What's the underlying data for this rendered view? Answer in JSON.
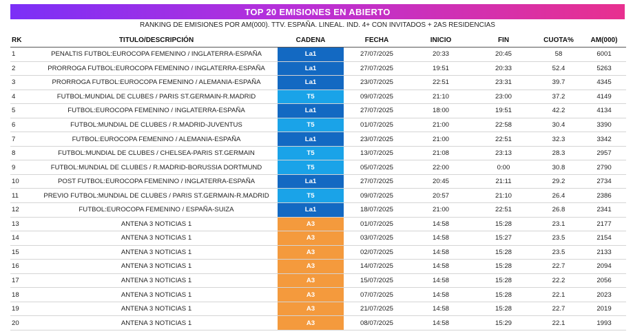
{
  "header": {
    "title": "TOP 20 EMISIONES EN ABIERTO",
    "subtitle": "RANKING DE EMISIONES POR AM(000). TTV. ESPAÑA. LINEAL. IND. 4+ CON INVITADOS + 2AS RESIDENCIAS"
  },
  "columns": {
    "rk": "RK",
    "titulo": "TITULO/DESCRIPCIÓN",
    "cadena": "CADENA",
    "fecha": "FECHA",
    "inicio": "INICIO",
    "fin": "FIN",
    "cuota": "CUOTA%",
    "am": "AM(000)"
  },
  "channel_colors": {
    "La1": "#1369c2",
    "T5": "#1aa3e8",
    "A3": "#f49a3d"
  },
  "rows": [
    {
      "rk": "1",
      "titulo": "PENALTIS FUTBOL:EUROCOPA FEMENINO / INGLATERRA-ESPAÑA",
      "cadena": "La1",
      "fecha": "27/07/2025",
      "inicio": "20:33",
      "fin": "20:45",
      "cuota": "58",
      "am": "6001"
    },
    {
      "rk": "2",
      "titulo": "PRORROGA FUTBOL:EUROCOPA FEMENINO / INGLATERRA-ESPAÑA",
      "cadena": "La1",
      "fecha": "27/07/2025",
      "inicio": "19:51",
      "fin": "20:33",
      "cuota": "52.4",
      "am": "5263"
    },
    {
      "rk": "3",
      "titulo": "PRORROGA FUTBOL:EUROCOPA FEMENINO / ALEMANIA-ESPAÑA",
      "cadena": "La1",
      "fecha": "23/07/2025",
      "inicio": "22:51",
      "fin": "23:31",
      "cuota": "39.7",
      "am": "4345"
    },
    {
      "rk": "4",
      "titulo": "FUTBOL:MUNDIAL DE CLUBES / PARIS ST.GERMAIN-R.MADRID",
      "cadena": "T5",
      "fecha": "09/07/2025",
      "inicio": "21:10",
      "fin": "23:00",
      "cuota": "37.2",
      "am": "4149"
    },
    {
      "rk": "5",
      "titulo": "FUTBOL:EUROCOPA FEMENINO / INGLATERRA-ESPAÑA",
      "cadena": "La1",
      "fecha": "27/07/2025",
      "inicio": "18:00",
      "fin": "19:51",
      "cuota": "42.2",
      "am": "4134"
    },
    {
      "rk": "6",
      "titulo": "FUTBOL:MUNDIAL DE CLUBES / R.MADRID-JUVENTUS",
      "cadena": "T5",
      "fecha": "01/07/2025",
      "inicio": "21:00",
      "fin": "22:58",
      "cuota": "30.4",
      "am": "3390"
    },
    {
      "rk": "7",
      "titulo": "FUTBOL:EUROCOPA FEMENINO / ALEMANIA-ESPAÑA",
      "cadena": "La1",
      "fecha": "23/07/2025",
      "inicio": "21:00",
      "fin": "22:51",
      "cuota": "32.3",
      "am": "3342"
    },
    {
      "rk": "8",
      "titulo": "FUTBOL:MUNDIAL DE CLUBES / CHELSEA-PARIS ST.GERMAIN",
      "cadena": "T5",
      "fecha": "13/07/2025",
      "inicio": "21:08",
      "fin": "23:13",
      "cuota": "28.3",
      "am": "2957"
    },
    {
      "rk": "9",
      "titulo": "FUTBOL:MUNDIAL DE CLUBES / R.MADRID-BORUSSIA DORTMUND",
      "cadena": "T5",
      "fecha": "05/07/2025",
      "inicio": "22:00",
      "fin": "0:00",
      "cuota": "30.8",
      "am": "2790"
    },
    {
      "rk": "10",
      "titulo": "POST FUTBOL:EUROCOPA FEMENINO / INGLATERRA-ESPAÑA",
      "cadena": "La1",
      "fecha": "27/07/2025",
      "inicio": "20:45",
      "fin": "21:11",
      "cuota": "29.2",
      "am": "2734"
    },
    {
      "rk": "11",
      "titulo": "PREVIO FUTBOL:MUNDIAL DE CLUBES / PARIS ST.GERMAIN-R.MADRID",
      "cadena": "T5",
      "fecha": "09/07/2025",
      "inicio": "20:57",
      "fin": "21:10",
      "cuota": "26.4",
      "am": "2386"
    },
    {
      "rk": "12",
      "titulo": "FUTBOL:EUROCOPA FEMENINO / ESPAÑA-SUIZA",
      "cadena": "La1",
      "fecha": "18/07/2025",
      "inicio": "21:00",
      "fin": "22:51",
      "cuota": "26.8",
      "am": "2341"
    },
    {
      "rk": "13",
      "titulo": "ANTENA 3 NOTICIAS 1",
      "cadena": "A3",
      "fecha": "01/07/2025",
      "inicio": "14:58",
      "fin": "15:28",
      "cuota": "23.1",
      "am": "2177"
    },
    {
      "rk": "14",
      "titulo": "ANTENA 3 NOTICIAS 1",
      "cadena": "A3",
      "fecha": "03/07/2025",
      "inicio": "14:58",
      "fin": "15:27",
      "cuota": "23.5",
      "am": "2154"
    },
    {
      "rk": "15",
      "titulo": "ANTENA 3 NOTICIAS 1",
      "cadena": "A3",
      "fecha": "02/07/2025",
      "inicio": "14:58",
      "fin": "15:28",
      "cuota": "23.5",
      "am": "2133"
    },
    {
      "rk": "16",
      "titulo": "ANTENA 3 NOTICIAS 1",
      "cadena": "A3",
      "fecha": "14/07/2025",
      "inicio": "14:58",
      "fin": "15:28",
      "cuota": "22.7",
      "am": "2094"
    },
    {
      "rk": "17",
      "titulo": "ANTENA 3 NOTICIAS 1",
      "cadena": "A3",
      "fecha": "15/07/2025",
      "inicio": "14:58",
      "fin": "15:28",
      "cuota": "22.2",
      "am": "2056"
    },
    {
      "rk": "18",
      "titulo": "ANTENA 3 NOTICIAS 1",
      "cadena": "A3",
      "fecha": "07/07/2025",
      "inicio": "14:58",
      "fin": "15:28",
      "cuota": "22.1",
      "am": "2023"
    },
    {
      "rk": "19",
      "titulo": "ANTENA 3 NOTICIAS 1",
      "cadena": "A3",
      "fecha": "21/07/2025",
      "inicio": "14:58",
      "fin": "15:28",
      "cuota": "22.7",
      "am": "2019"
    },
    {
      "rk": "20",
      "titulo": "ANTENA 3 NOTICIAS 1",
      "cadena": "A3",
      "fecha": "08/07/2025",
      "inicio": "14:58",
      "fin": "15:29",
      "cuota": "22.1",
      "am": "1993"
    }
  ]
}
